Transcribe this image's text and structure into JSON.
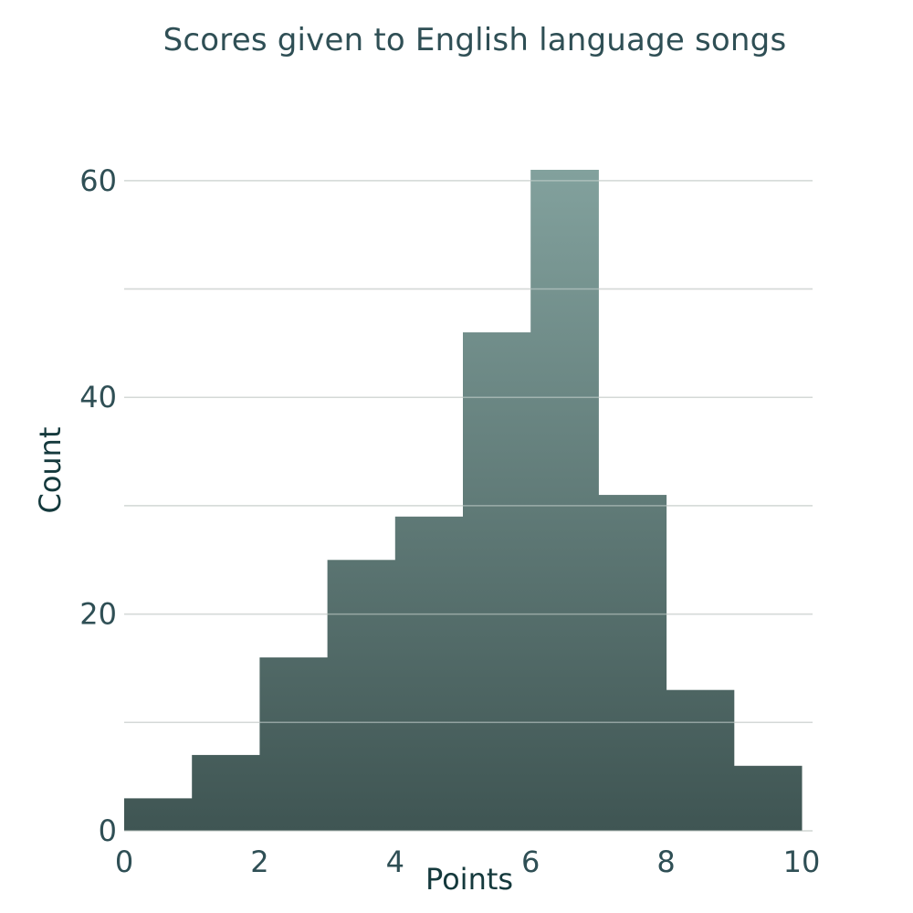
{
  "chart_data": {
    "type": "bar",
    "title": "Scores given to English language songs",
    "xlabel": "Points",
    "ylabel": "Count",
    "bins": [
      {
        "x0": 0,
        "x1": 1,
        "count": 3
      },
      {
        "x0": 1,
        "x1": 2,
        "count": 7
      },
      {
        "x0": 2,
        "x1": 3,
        "count": 16
      },
      {
        "x0": 3,
        "x1": 4,
        "count": 25
      },
      {
        "x0": 4,
        "x1": 5,
        "count": 29
      },
      {
        "x0": 5,
        "x1": 6,
        "count": 46
      },
      {
        "x0": 6,
        "x1": 7,
        "count": 61
      },
      {
        "x0": 7,
        "x1": 8,
        "count": 31
      },
      {
        "x0": 8,
        "x1": 9,
        "count": 13
      },
      {
        "x0": 9,
        "x1": 10,
        "count": 6
      }
    ],
    "xlim": [
      0,
      10
    ],
    "ylim": [
      0,
      61
    ],
    "x_ticks": [
      0,
      2,
      4,
      6,
      8,
      10
    ],
    "y_ticks": [
      0,
      20,
      40,
      60
    ],
    "gridlines_y": [
      0,
      10,
      20,
      30,
      40,
      50,
      60
    ],
    "grid": true,
    "legend": "none",
    "colors": {
      "fill_top": "#82a19d",
      "fill_bottom": "#3f5553",
      "grid": "#d9d9d9",
      "grid_over_bar": "#cfd8d6",
      "tick_text": "#2f4f55",
      "title": "#2f4f55"
    }
  }
}
